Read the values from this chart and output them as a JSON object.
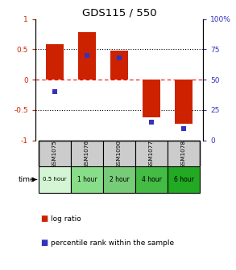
{
  "title": "GDS115 / 550",
  "samples": [
    "GSM1075",
    "GSM1076",
    "GSM1090",
    "GSM1077",
    "GSM1078"
  ],
  "time_labels": [
    "0.5 hour",
    "1 hour",
    "2 hour",
    "4 hour",
    "6 hour"
  ],
  "time_colors": [
    "#d4f5d4",
    "#88dd88",
    "#77cc77",
    "#44bb44",
    "#22aa22"
  ],
  "log_ratio": [
    0.58,
    0.78,
    0.48,
    -0.62,
    -0.72
  ],
  "pct_values": [
    0.4,
    0.7,
    0.68,
    0.15,
    0.1
  ],
  "bar_color": "#cc2200",
  "dot_color": "#3333bb",
  "ylim": [
    -1,
    1
  ],
  "yticks_left": [
    -1,
    -0.5,
    0,
    0.5,
    1
  ],
  "ytick_labels_left": [
    "-1",
    "-0.5",
    "0",
    "0.5",
    "1"
  ],
  "yticks_right_vals": [
    0.0,
    0.25,
    0.5,
    0.75,
    1.0
  ],
  "ytick_labels_right": [
    "0",
    "25",
    "50",
    "75",
    "100%"
  ],
  "bar_width": 0.55,
  "dot_size": 25,
  "legend_red_label": "log ratio",
  "legend_blue_label": "percentile rank within the sample",
  "left_tick_color": "#cc2200",
  "right_tick_color": "#3333bb",
  "sample_bg": "#cccccc",
  "grid_color": "#aaaaaa"
}
